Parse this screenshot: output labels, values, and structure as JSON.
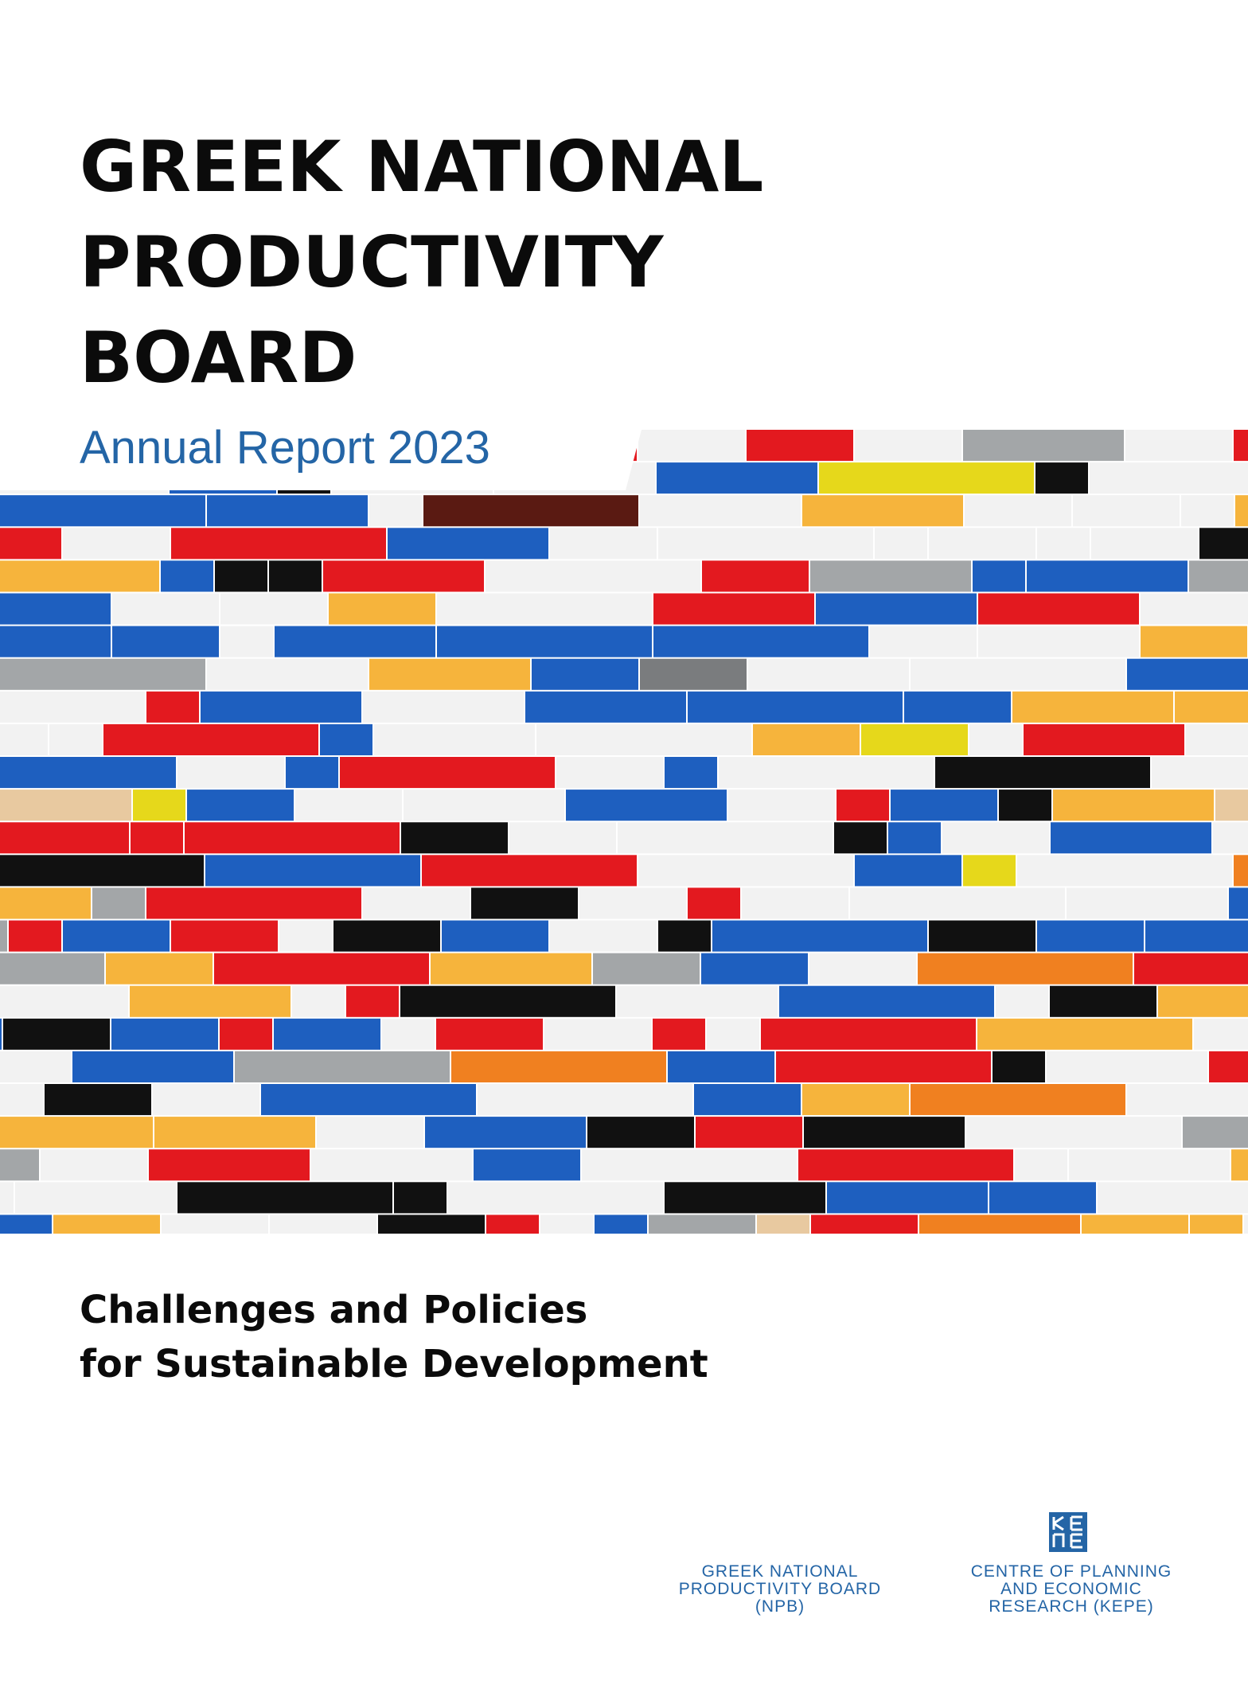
{
  "title": {
    "line1": "GREEK NATIONAL",
    "line2": "PRODUCTIVITY",
    "line3": "BOARD"
  },
  "report": "Annual Report 2023",
  "subtitle": {
    "line1": "Challenges and Policies",
    "line2": "for Sustainable Development"
  },
  "organizations": {
    "npb": [
      "GREEK NATIONAL",
      "PRODUCTIVITY BOARD",
      "(NPB)"
    ],
    "kepe": [
      "CENTRE OF PLANNING",
      "AND ECONOMIC",
      "RESEARCH (KEPE)"
    ]
  },
  "colors": {
    "title_text": "#0b0b0b",
    "accent_blue": "#2465a6",
    "brick_palette": [
      "#f2f2f2",
      "#f2f2f2",
      "#1e5fbf",
      "#1e5fbf",
      "#e3191f",
      "#f6b43c",
      "#111111",
      "#a3a6a8",
      "#7a7c7e",
      "#1e4a25",
      "#5a1a12",
      "#e8c9a0",
      "#e6d81b",
      "#f08020"
    ]
  },
  "icons": {
    "kepe_logo": "kepe-logo-icon"
  }
}
